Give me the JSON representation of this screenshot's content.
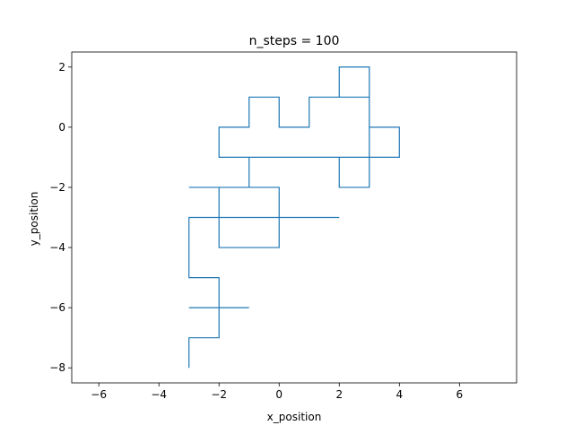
{
  "chart_data": {
    "type": "line",
    "title": "n_steps = 100",
    "xlabel": "x_position",
    "ylabel": "y_position",
    "xlim": [
      -6.9,
      7.9
    ],
    "ylim": [
      -8.5,
      2.5
    ],
    "xticks": [
      -6,
      -4,
      -2,
      0,
      2,
      4,
      6
    ],
    "yticks": [
      -8,
      -6,
      -4,
      -2,
      0,
      2
    ],
    "grid": false,
    "line_color": "#1f77b4",
    "series": [
      {
        "x": [
          -3,
          -3,
          -2,
          -2,
          -1,
          -3,
          -2,
          -2,
          -3,
          -3,
          -2,
          -2,
          -3,
          -3,
          -2,
          -2,
          -1,
          -2,
          -2,
          -2,
          0,
          0,
          -2,
          -2,
          -1,
          -1,
          1,
          0,
          0,
          2,
          1,
          1,
          0,
          0,
          -1,
          -1,
          0,
          0,
          1,
          1,
          3,
          3,
          2,
          2,
          3,
          3,
          4,
          4,
          3,
          3,
          2,
          2,
          3,
          3,
          1,
          1,
          0,
          0,
          -1,
          -1,
          -2,
          -2,
          -1,
          -1,
          -2,
          -2,
          -3,
          -2
        ],
        "y": [
          -8,
          -7,
          -7,
          -6,
          -6,
          -6,
          -6,
          -5,
          -5,
          -3,
          -3,
          -2,
          -2,
          -2,
          -2,
          -4,
          -4,
          -4,
          -4,
          -4,
          -4,
          -3,
          -3,
          -3,
          -3,
          -3,
          -3,
          -3,
          -3,
          -3,
          -3,
          -3,
          -3,
          -2,
          -2,
          -1,
          -1,
          -1,
          -1,
          -1,
          -1,
          -2,
          -2,
          -1,
          -1,
          0,
          0,
          -1,
          -1,
          1,
          1,
          2,
          2,
          1,
          1,
          0,
          0,
          1,
          1,
          0,
          0,
          -1,
          -1,
          -2,
          -2,
          -2,
          -2,
          -2
        ]
      }
    ]
  }
}
